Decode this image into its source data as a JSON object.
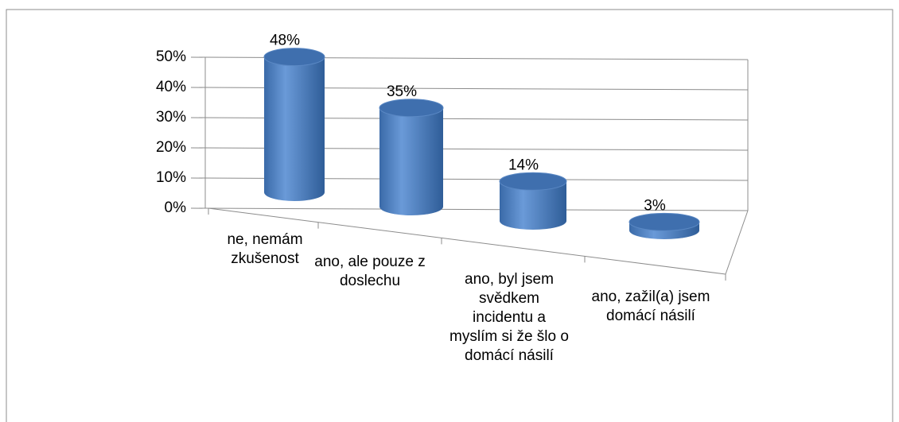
{
  "chart_data": {
    "type": "bar3d",
    "categories": [
      "ne, nemám zkušenost",
      "ano, ale pouze z doslechu",
      "ano, byl jsem svědkem incidentu a myslím si že šlo o domácí násilí",
      "ano, zažil(a) jsem domácí násilí"
    ],
    "values": [
      48,
      35,
      14,
      3
    ],
    "value_labels": [
      "48%",
      "35%",
      "14%",
      "3%"
    ],
    "color": "#4f81bd",
    "ylim": [
      0,
      50
    ],
    "yticks": [
      {
        "value": 0,
        "label": "0%"
      },
      {
        "value": 10,
        "label": "10%"
      },
      {
        "value": 20,
        "label": "20%"
      },
      {
        "value": 30,
        "label": "30%"
      },
      {
        "value": 40,
        "label": "40%"
      },
      {
        "value": 50,
        "label": "50%"
      }
    ],
    "grid": true
  }
}
